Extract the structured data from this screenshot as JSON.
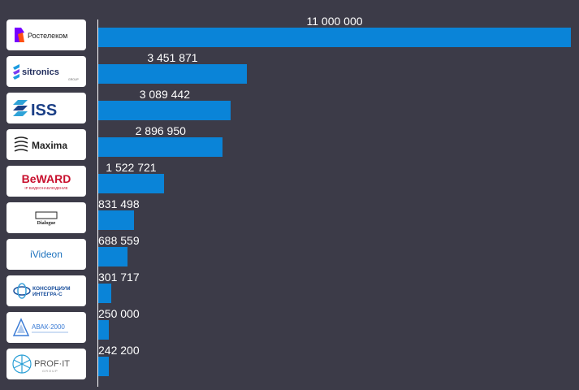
{
  "chart_data": {
    "type": "bar",
    "orientation": "horizontal",
    "bar_color": "#0a84d8",
    "background_color": "#3c3b48",
    "categories": [
      "Ростелеком",
      "sitronics",
      "ISS",
      "Maxima",
      "BeWARD",
      "Dialogue",
      "iVideon",
      "КОНСОРЦИУМ ИНТЕГРА-С",
      "АВАК-2000",
      "PROF-IT"
    ],
    "values": [
      11000000,
      3451871,
      3089442,
      2896950,
      1522721,
      831498,
      688559,
      301717,
      250000,
      242200
    ],
    "value_labels": [
      "11 000 000",
      "3 451 871",
      "3 089 442",
      "2 896 950",
      "1 522 721",
      "831 498",
      "688 559",
      "301 717",
      "250 000",
      "242 200"
    ],
    "xlim": [
      0,
      11000000
    ],
    "grid": false,
    "legend": "none"
  },
  "logos": {
    "rostelecom": {
      "text": "Ростелеком",
      "color": "#7700ff"
    },
    "sitronics": {
      "text": "sitronics",
      "sub": "GROUP",
      "color": "#1f2c5c"
    },
    "iss": {
      "text": "ISS",
      "color": "#1b3f86"
    },
    "maxima": {
      "text": "Maxima",
      "color": "#222222"
    },
    "beward": {
      "text": "BeWARD",
      "sub": "IP ВИДЕОНАБЛЮДЕНИЕ",
      "color": "#c8102e"
    },
    "dialogue": {
      "text": "Dialogue",
      "color": "#222222"
    },
    "ivideon": {
      "text": "iVideon",
      "color": "#1e73be"
    },
    "integra": {
      "text": "КОНСОРЦИУМ",
      "text2": "ИНТЕГРА-С",
      "color": "#1a4f9c"
    },
    "avak": {
      "text": "АВАК-2000",
      "color": "#3a7bd5"
    },
    "profit": {
      "text": "PROF·IT",
      "sub": "GROUP",
      "color": "#555555"
    }
  }
}
